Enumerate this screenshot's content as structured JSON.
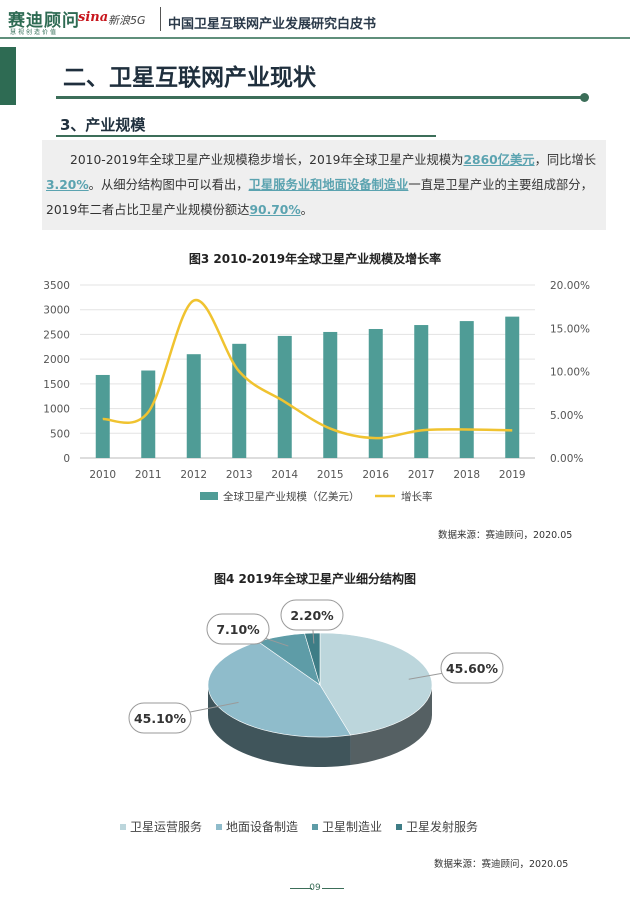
{
  "header": {
    "logo_cn": "赛迪顾问",
    "logo_sub": "慧视创造价值",
    "sina_logo": "sina",
    "sina_sub": "新浪5G",
    "title": "中国卫星互联网产业发展研究白皮书"
  },
  "section": {
    "title": "二、卫星互联网产业现状",
    "subtitle": "3、产业规模"
  },
  "paragraph": {
    "t1": "2010-2019年全球卫星产业规模稳步增长，2019年全球卫星产业规模为",
    "h1": "2860亿美元",
    "t2": "，同比增长",
    "h2": "3.20%",
    "t3": "。从细分结构图中可以看出，",
    "h3": "卫星服务业和地面设备制造业",
    "t4": "一直是卫星产业的主要组成部分，2019年二者占比卫星产业规模份额达",
    "h4": "90.70%",
    "t5": "。"
  },
  "figure3": {
    "title": "图3  2010-2019年全球卫星产业规模及增长率",
    "source": "数据来源：赛迪顾问，2020.05"
  },
  "figure4": {
    "title": "图4  2019年全球卫星产业细分结构图",
    "source": "数据来源：赛迪顾问，2020.05"
  },
  "page_number": "09",
  "chart_data": [
    {
      "type": "bar",
      "categories": [
        "2010",
        "2011",
        "2012",
        "2013",
        "2014",
        "2015",
        "2016",
        "2017",
        "2018",
        "2019"
      ],
      "series": [
        {
          "name": "全球卫星产业规模（亿美元）",
          "type": "bar",
          "axis": "left",
          "values": [
            1680,
            1770,
            2100,
            2310,
            2470,
            2550,
            2610,
            2690,
            2770,
            2860
          ],
          "color": "#4f9c96"
        },
        {
          "name": "增长率",
          "type": "line",
          "axis": "right",
          "values": [
            4.5,
            5.3,
            18.2,
            10.0,
            6.5,
            3.4,
            2.3,
            3.2,
            3.3,
            3.2
          ],
          "color": "#f0c330"
        }
      ],
      "ylim": [
        0,
        3500
      ],
      "yticks": [
        "0",
        "500",
        "1000",
        "1500",
        "2000",
        "2500",
        "3000",
        "3500"
      ],
      "y2lim": [
        0,
        20
      ],
      "y2ticks": [
        "0.00%",
        "5.00%",
        "10.00%",
        "15.00%",
        "20.00%"
      ],
      "legend_position": "bottom",
      "grid": true
    },
    {
      "type": "pie",
      "categories": [
        "卫星运营服务",
        "地面设备制造",
        "卫星制造业",
        "卫星发射服务"
      ],
      "values": [
        45.6,
        45.1,
        7.1,
        2.2
      ],
      "labels": [
        "45.60%",
        "45.10%",
        "7.10%",
        "2.20%"
      ],
      "colors": [
        "#bcd6dc",
        "#8fbccb",
        "#5e9ca7",
        "#3e7d86"
      ],
      "legend_position": "bottom"
    }
  ]
}
